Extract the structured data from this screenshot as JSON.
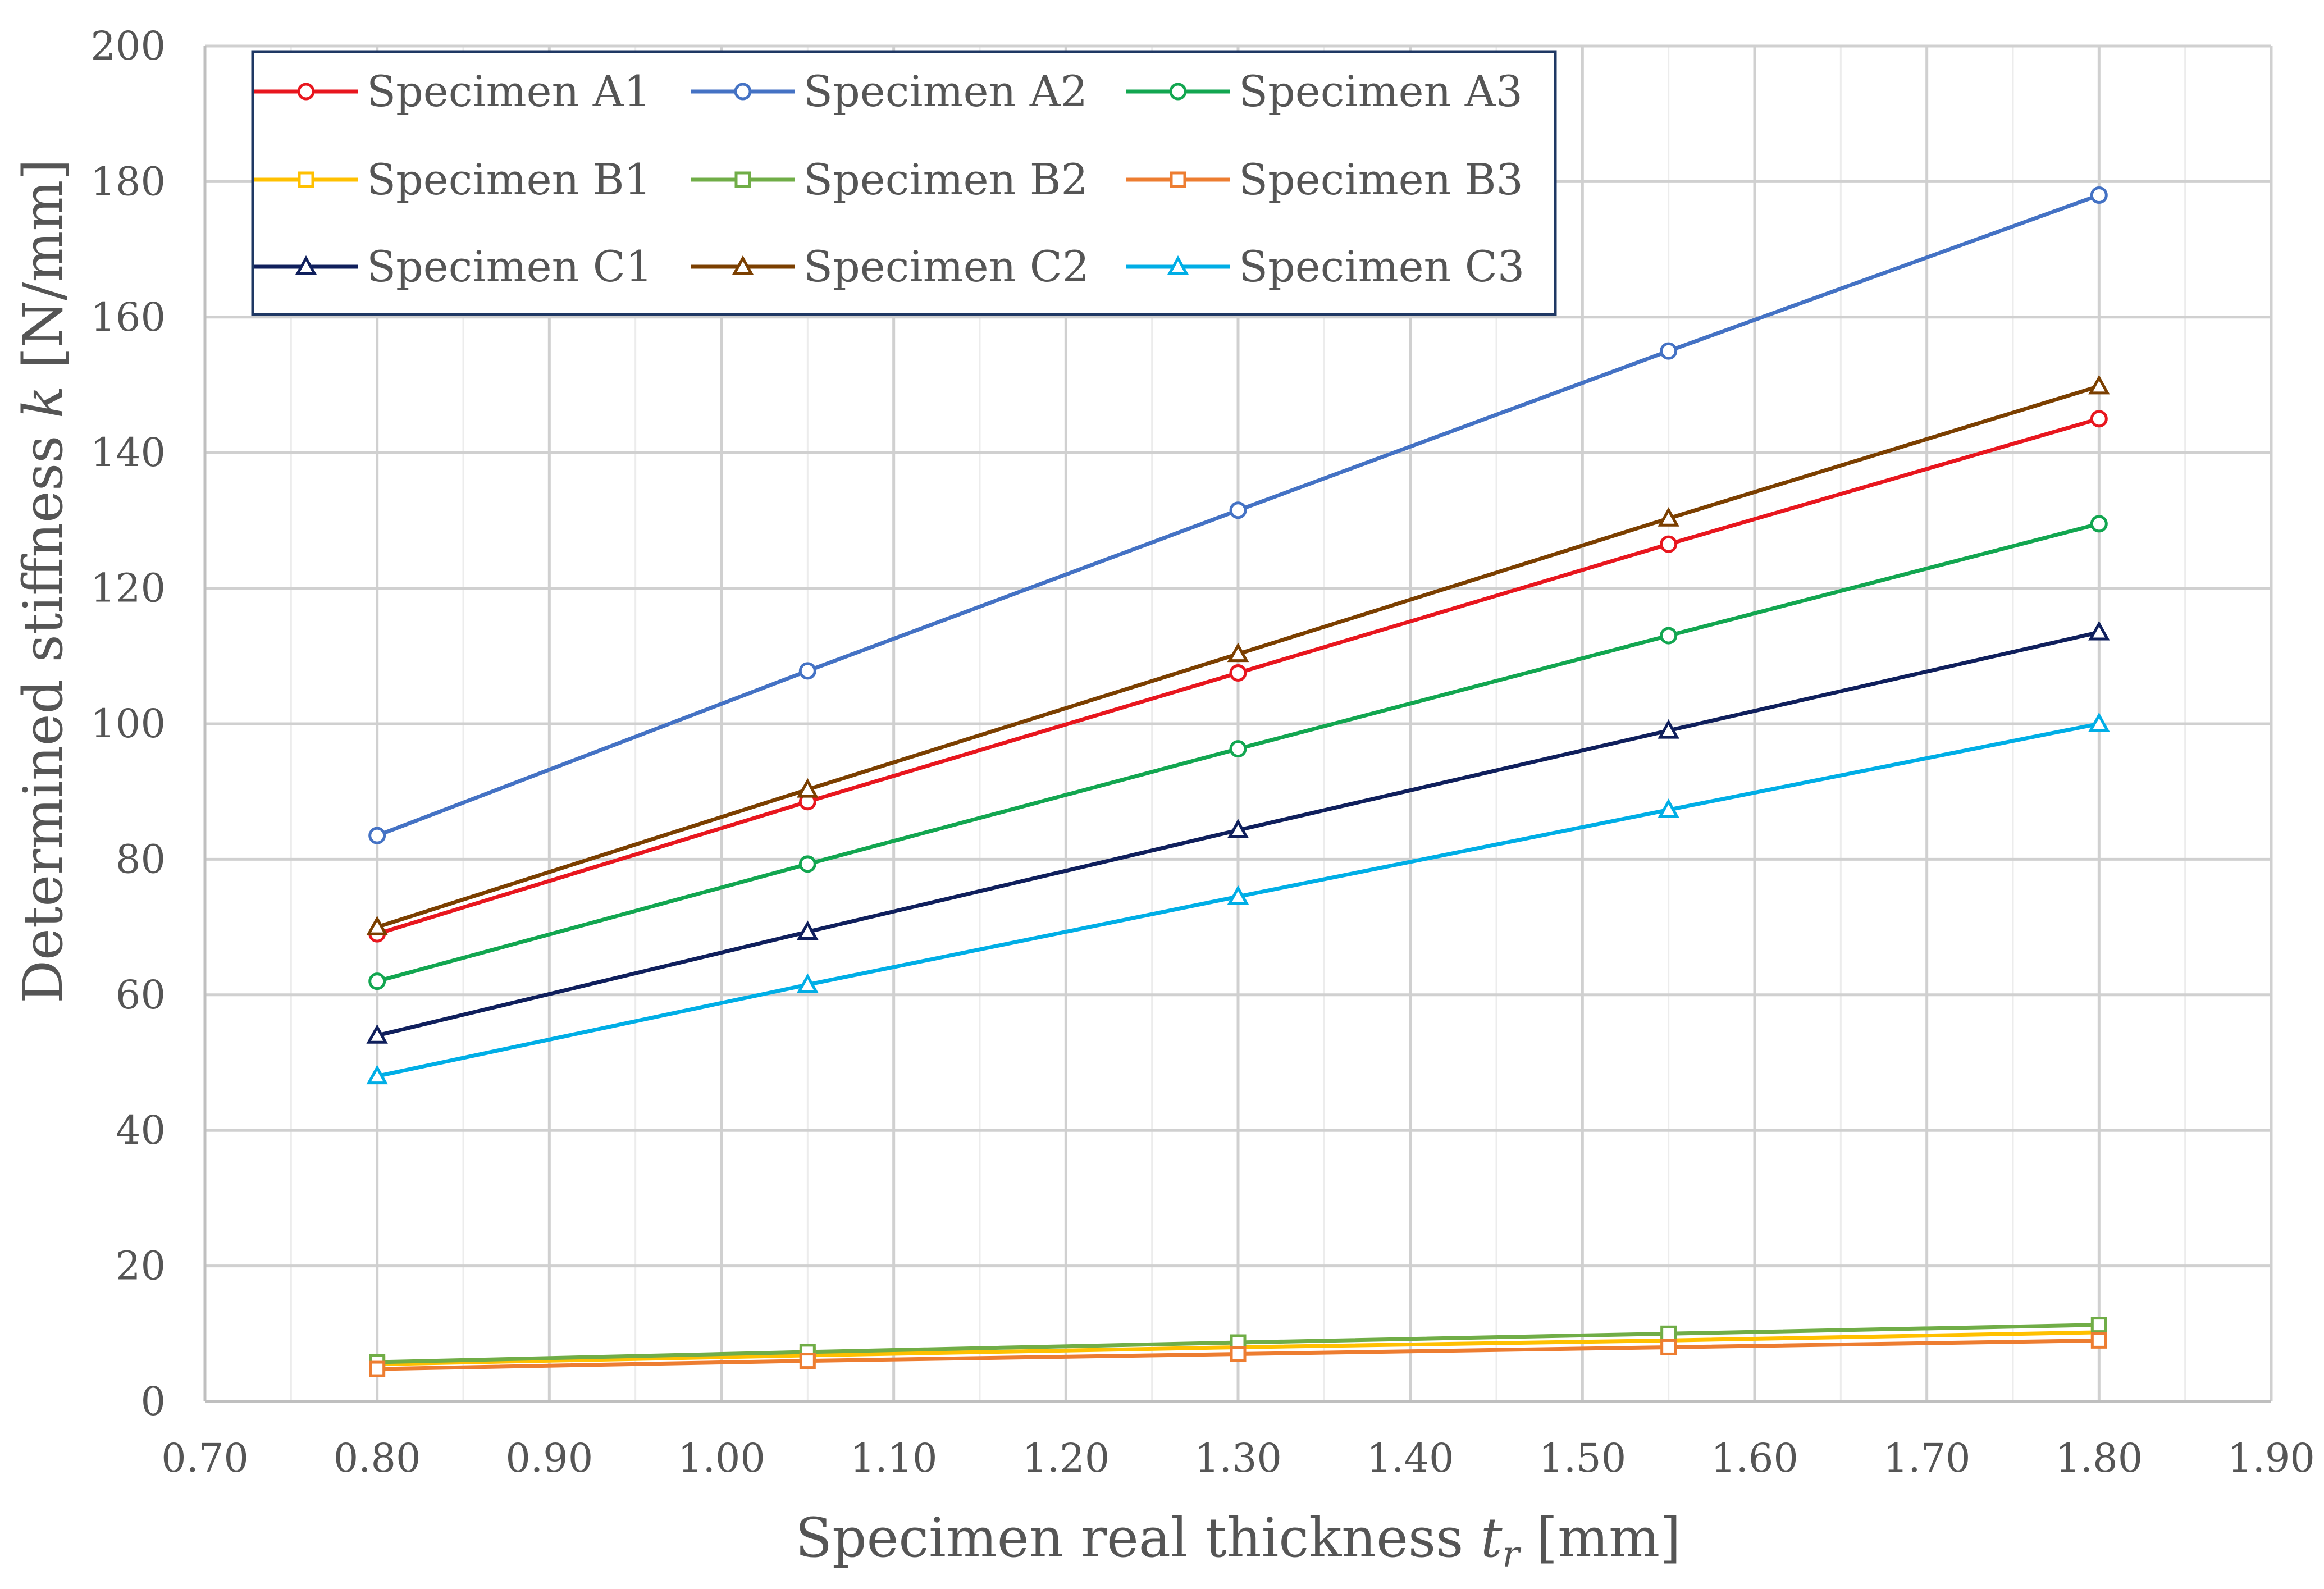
{
  "chart_data": {
    "type": "line",
    "title": "",
    "xlabel": {
      "prefix": "Specimen real thickness ",
      "var": "t",
      "sub": "r",
      "suffix": " [mm]"
    },
    "ylabel": {
      "prefix": "Determined stiffness ",
      "var": "k",
      "suffix": " [N/mm]"
    },
    "xlim": [
      0.7,
      1.9
    ],
    "ylim": [
      0,
      200
    ],
    "x_major_step": 0.1,
    "x_minor_step": 0.05,
    "y_major_step": 20,
    "x_tick_labels": [
      "0.70",
      "0.80",
      "0.90",
      "1.00",
      "1.10",
      "1.20",
      "1.30",
      "1.40",
      "1.50",
      "1.60",
      "1.70",
      "1.80",
      "1.90"
    ],
    "y_tick_labels": [
      "0",
      "20",
      "40",
      "60",
      "80",
      "100",
      "120",
      "140",
      "160",
      "180",
      "200"
    ],
    "grid": true,
    "legend_position": "top-left",
    "x": [
      0.8,
      1.05,
      1.3,
      1.55,
      1.8
    ],
    "series": [
      {
        "name": "Specimen A1",
        "color": "#e8161e",
        "marker": "circle",
        "values": [
          69.0,
          88.5,
          107.5,
          126.5,
          145.0
        ]
      },
      {
        "name": "Specimen A2",
        "color": "#4472c4",
        "marker": "circle",
        "values": [
          83.5,
          107.8,
          131.5,
          155.0,
          178.0
        ]
      },
      {
        "name": "Specimen A3",
        "color": "#12a650",
        "marker": "circle",
        "values": [
          62.0,
          79.3,
          96.3,
          113.0,
          129.5
        ]
      },
      {
        "name": "Specimen B1",
        "color": "#ffc000",
        "marker": "square",
        "values": [
          5.5,
          6.8,
          8.0,
          9.0,
          10.2
        ]
      },
      {
        "name": "Specimen B2",
        "color": "#70ad47",
        "marker": "square",
        "values": [
          5.8,
          7.3,
          8.7,
          10.0,
          11.3
        ]
      },
      {
        "name": "Specimen B3",
        "color": "#ed7d31",
        "marker": "square",
        "values": [
          4.8,
          6.0,
          7.0,
          8.0,
          9.0
        ]
      },
      {
        "name": "Specimen C1",
        "color": "#0f1f5c",
        "marker": "triangle",
        "values": [
          54.0,
          69.3,
          84.3,
          99.0,
          113.5
        ]
      },
      {
        "name": "Specimen C2",
        "color": "#7b3f00",
        "marker": "triangle",
        "values": [
          70.0,
          90.3,
          110.3,
          130.3,
          149.8
        ]
      },
      {
        "name": "Specimen C3",
        "color": "#00aee6",
        "marker": "triangle",
        "values": [
          48.0,
          61.5,
          74.5,
          87.3,
          100.0
        ]
      }
    ]
  }
}
